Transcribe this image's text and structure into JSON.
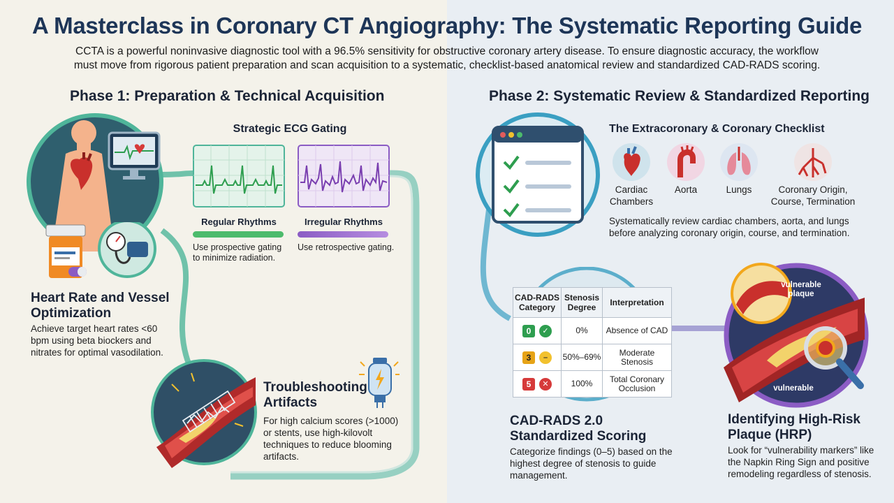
{
  "title": "A Masterclass in Coronary CT Angiography: The Systematic Reporting Guide",
  "subtitle": "CCTA is a powerful noninvasive diagnostic tool with a 96.5% sensitivity for obstructive coronary artery disease. To ensure diagnostic accuracy, the workflow must move from rigorous patient preparation and scan acquisition to a systematic, checklist-based anatomical review and standardized CAD-RADS scoring.",
  "phase1": {
    "heading": "Phase 1: Preparation & Technical Acquisition",
    "ecg": {
      "heading": "Strategic ECG Gating",
      "regular": {
        "label": "Regular Rhythms",
        "desc": "Use prospective gating to minimize radiation."
      },
      "irregular": {
        "label": "Irregular Rhythms",
        "desc": "Use retrospective gating."
      }
    },
    "heart_rate": {
      "heading": "Heart Rate and Vessel Optimization",
      "desc": "Achieve target heart rates <60 bpm using beta biockers and nitrates for optimal vasodilation."
    },
    "artifacts": {
      "heading": "Troubleshooting Artifacts",
      "desc": "For high calcium scores (>1000) or stents, use high-kilovolt techniques to reduce blooming artifacts."
    }
  },
  "phase2": {
    "heading": "Phase 2: Systematic Review & Standardized Reporting",
    "checklist": {
      "heading": "The Extracoronary & Coronary Checklist",
      "items": [
        {
          "label": "Cardiac Chambers"
        },
        {
          "label": "Aorta"
        },
        {
          "label": "Lungs"
        },
        {
          "label": "Coronary Origin, Course, Termination"
        }
      ],
      "desc": "Systematically review cardiac chambers, aorta, and lungs before analyzing coronary origin, course, and termination."
    },
    "cadrads_table": {
      "headers": [
        "CAD-RADS Category",
        "Stenosis Degree",
        "Interpretation"
      ],
      "rows": [
        {
          "category": "0",
          "stenosis": "0%",
          "interpretation": "Absence of CAD",
          "color": "#2e9e4f"
        },
        {
          "category": "3",
          "stenosis": "50%–69%",
          "interpretation": "Moderate Stenosis",
          "color": "#e6a317"
        },
        {
          "category": "5",
          "stenosis": "100%",
          "interpretation": "Total Coronary Occlusion",
          "color": "#d63a3a"
        }
      ]
    },
    "cadrads": {
      "heading": "CAD-RADS 2.0 Standardized Scoring",
      "desc": "Categorize findings (0–5) based on the highest degree of stenosis to guide management."
    },
    "hrp": {
      "heading": "Identifying High-Risk Plaque (HRP)",
      "label_top": "vulnerable plaque",
      "label_bottom": "vulnerable",
      "desc": "Look for “vulnerability markers” like the Napkin Ring Sign and positive remodeling regardless of stenosis."
    }
  },
  "colors": {
    "teal": "#4fb59a",
    "purple": "#8b5cc4",
    "blue_accent": "#3a6fa8",
    "title": "#1d3557"
  }
}
